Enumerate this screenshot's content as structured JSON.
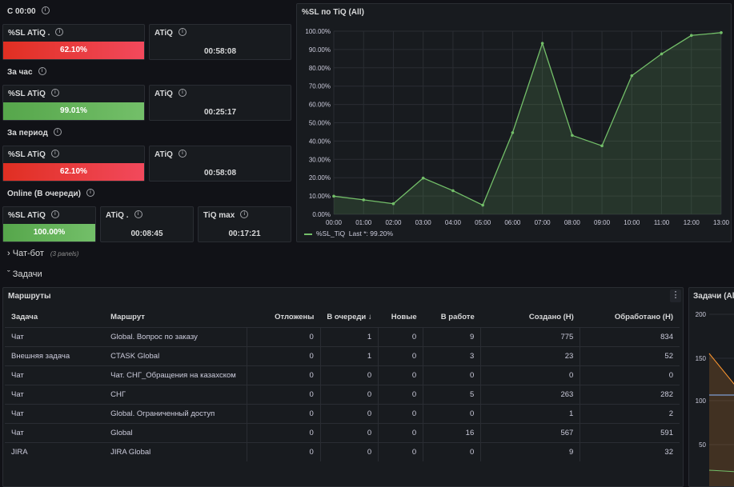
{
  "row_c0000": {
    "label": "С 00:00"
  },
  "row_hour": {
    "label": "За час"
  },
  "row_period": {
    "label": "За период"
  },
  "row_online": {
    "label": "Online (В очереди)"
  },
  "stats": {
    "c0000": {
      "sl_title": "%SL ATiQ .",
      "sl_value": "62.10%",
      "atiq_title": "ATiQ",
      "atiq_value": "00:58:08"
    },
    "hour": {
      "sl_title": "%SL ATiQ",
      "sl_value": "99.01%",
      "atiq_title": "ATiQ",
      "atiq_value": "00:25:17"
    },
    "period": {
      "sl_title": "%SL ATiQ",
      "sl_value": "62.10%",
      "atiq_title": "ATiQ",
      "atiq_value": "00:58:08"
    },
    "online": {
      "sl_title": "%SL ATiQ",
      "sl_value": "100.00%",
      "atiq_title": "ATiQ .",
      "atiq_value": "00:08:45",
      "max_title": "TiQ max",
      "max_value": "00:17:21"
    }
  },
  "colors": {
    "red": "#f2495c",
    "green": "#73bf69",
    "bg": "#111217",
    "panel": "#181b1f"
  },
  "chart_panel": {
    "title": "%SL по TiQ (All)",
    "legend_label": "%SL_TiQ",
    "legend_last": "Last *: 99.20%"
  },
  "chart_data": {
    "type": "area",
    "x": [
      "00:00",
      "01:00",
      "02:00",
      "03:00",
      "04:00",
      "05:00",
      "06:00",
      "07:00",
      "08:00",
      "09:00",
      "10:00",
      "11:00",
      "12:00",
      "13:00"
    ],
    "y_ticks": [
      "0.00%",
      "10.00%",
      "20.00%",
      "30.00%",
      "40.00%",
      "50.00%",
      "60.00%",
      "70.00%",
      "80.00%",
      "90.00%",
      "100.00%"
    ],
    "ylim": [
      0,
      100
    ],
    "series": [
      {
        "name": "%SL_TiQ",
        "values": [
          9.9,
          7.9,
          5.8,
          19.8,
          12.9,
          5.0,
          44.6,
          93.4,
          43.1,
          37.4,
          75.7,
          87.6,
          97.7,
          99.2
        ]
      }
    ]
  },
  "sections": {
    "chatbot": {
      "label": "Чат-бот",
      "meta": "(3 panels)"
    },
    "tasks": {
      "label": "Задачи"
    }
  },
  "routes_panel": {
    "title": "Маршруты",
    "menu_icon": "kebab-menu-icon",
    "columns": [
      "Задача",
      "Маршрут",
      "Отложены",
      "В очереди",
      "Новые",
      "В работе",
      "Создано (Н)",
      "Обработано (Н)"
    ],
    "sort_icon": "arrow-down-icon",
    "rows": [
      [
        "Чат",
        "Global. Вопрос по заказу",
        "0",
        "1",
        "0",
        "9",
        "775",
        "834"
      ],
      [
        "Внешняя задача",
        "CTASK Global",
        "0",
        "1",
        "0",
        "3",
        "23",
        "52"
      ],
      [
        "Чат",
        "Чат. СНГ_Обращения на казахском",
        "0",
        "0",
        "0",
        "0",
        "0",
        "0"
      ],
      [
        "Чат",
        "СНГ",
        "0",
        "0",
        "0",
        "5",
        "263",
        "282"
      ],
      [
        "Чат",
        "Global. Ограниченный доступ",
        "0",
        "0",
        "0",
        "0",
        "1",
        "2"
      ],
      [
        "Чат",
        "Global",
        "0",
        "0",
        "0",
        "16",
        "567",
        "591"
      ],
      [
        "JIRA",
        "JIRA Global",
        "0",
        "0",
        "0",
        "0",
        "9",
        "32"
      ]
    ]
  },
  "tasks_panel": {
    "title": "Задачи (All",
    "y_ticks": [
      "200",
      "150",
      "100",
      "50"
    ]
  }
}
